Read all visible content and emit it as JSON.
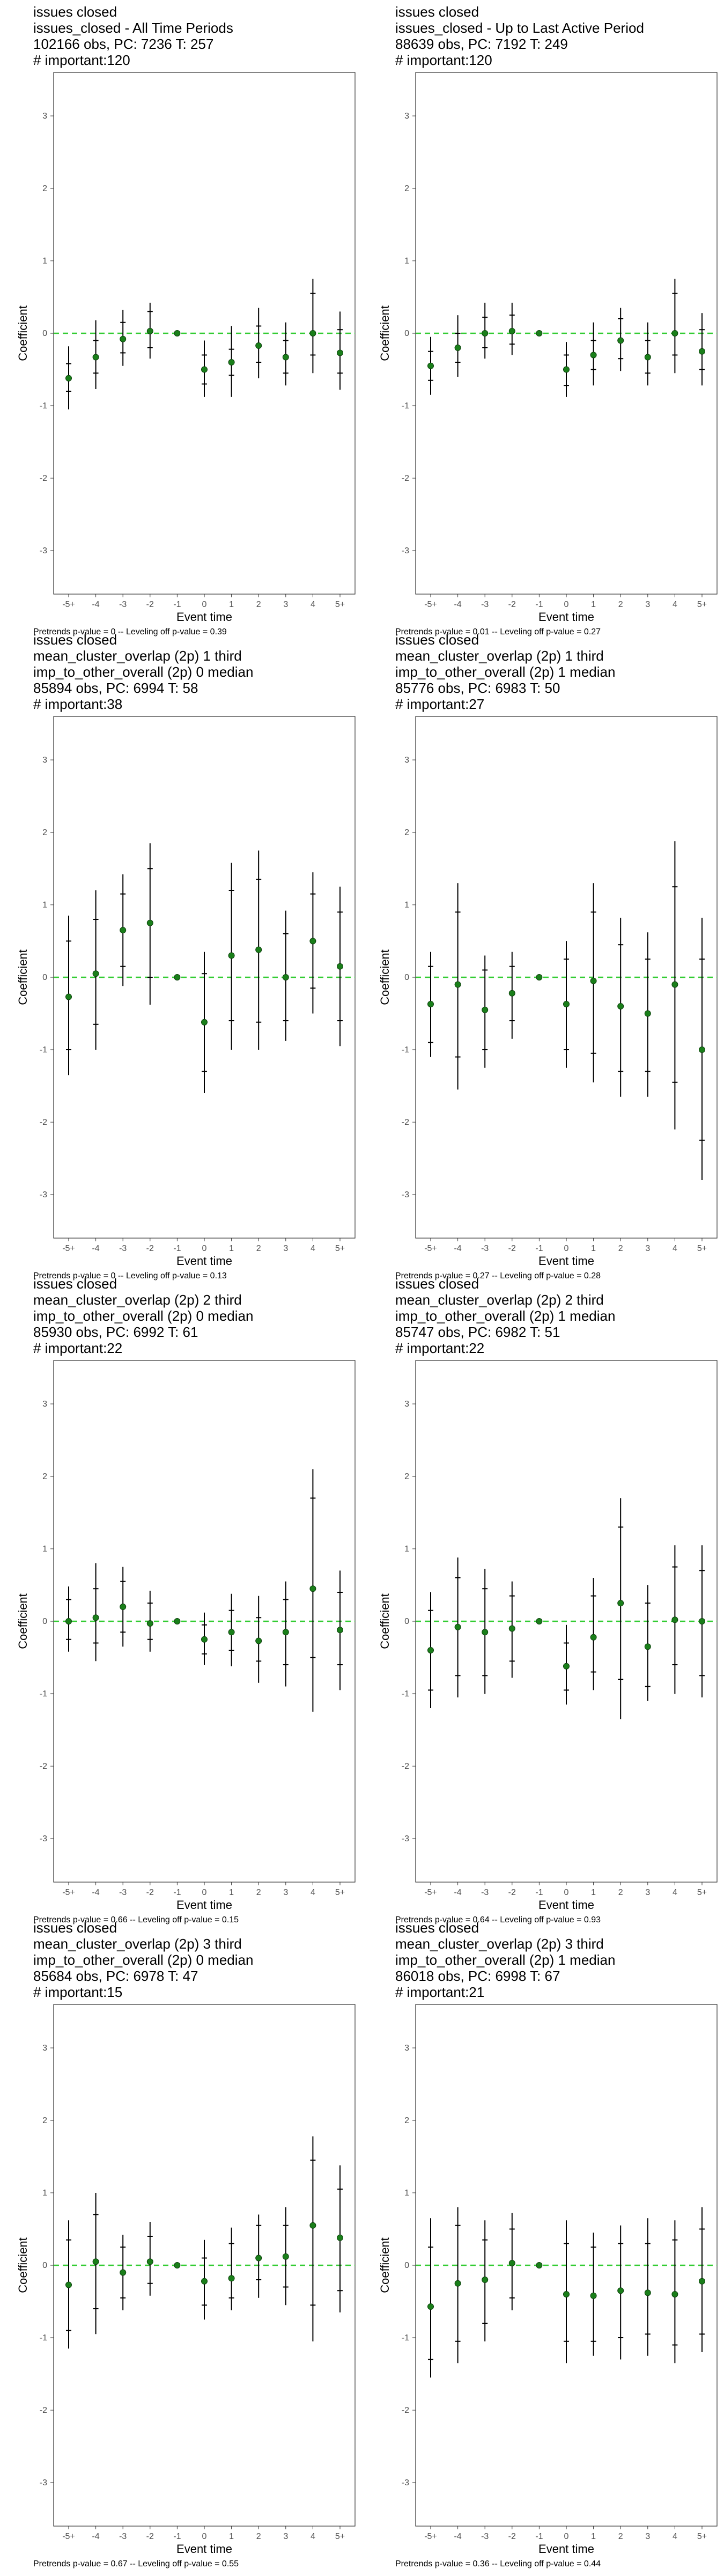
{
  "axis": {
    "ylabel": "Coefficient",
    "xlabel": "Event time",
    "xticks": [
      "-5+",
      "-4",
      "-3",
      "-2",
      "-1",
      "0",
      "1",
      "2",
      "3",
      "4",
      "5+"
    ],
    "yticks": [
      -3,
      -2,
      -1,
      0,
      1,
      2,
      3
    ],
    "ylim": [
      -3.6,
      3.6
    ]
  },
  "colors": {
    "point": "#1a7f1a",
    "zero_line": "#33cc33",
    "bar": "#000000"
  },
  "chart_data": [
    {
      "type": "scatter",
      "title_lines": [
        "issues closed",
        "issues_closed - All Time Periods",
        "102166 obs, PC: 7236 T: 257",
        "# important:120"
      ],
      "footnote": "Pretrends p-value = 0 -- Leveling off p-value = 0.39",
      "x": [
        "-5+",
        "-4",
        "-3",
        "-2",
        "-1",
        "0",
        "1",
        "2",
        "3",
        "4",
        "5+"
      ],
      "y": [
        -0.62,
        -0.33,
        -0.08,
        0.03,
        0,
        -0.5,
        -0.4,
        -0.17,
        -0.33,
        0.0,
        -0.27
      ],
      "ci_inner": [
        [
          -0.8,
          -0.42
        ],
        [
          -0.55,
          -0.1
        ],
        [
          -0.27,
          0.15
        ],
        [
          -0.2,
          0.3
        ],
        [
          0,
          0
        ],
        [
          -0.7,
          -0.3
        ],
        [
          -0.58,
          -0.22
        ],
        [
          -0.4,
          0.1
        ],
        [
          -0.55,
          -0.1
        ],
        [
          -0.3,
          0.55
        ],
        [
          -0.55,
          0.05
        ]
      ],
      "ci_outer": [
        [
          -1.05,
          -0.18
        ],
        [
          -0.77,
          0.18
        ],
        [
          -0.45,
          0.32
        ],
        [
          -0.35,
          0.42
        ],
        [
          0,
          0
        ],
        [
          -0.88,
          -0.1
        ],
        [
          -0.88,
          0.1
        ],
        [
          -0.62,
          0.35
        ],
        [
          -0.72,
          0.15
        ],
        [
          -0.55,
          0.75
        ],
        [
          -0.78,
          0.3
        ]
      ]
    },
    {
      "type": "scatter",
      "title_lines": [
        "issues closed",
        "issues_closed - Up to Last Active Period",
        "88639 obs, PC: 7192 T: 249",
        "# important:120"
      ],
      "footnote": "Pretrends p-value = 0.01 -- Leveling off p-value = 0.27",
      "x": [
        "-5+",
        "-4",
        "-3",
        "-2",
        "-1",
        "0",
        "1",
        "2",
        "3",
        "4",
        "5+"
      ],
      "y": [
        -0.45,
        -0.2,
        0.0,
        0.03,
        0,
        -0.5,
        -0.3,
        -0.1,
        -0.33,
        0.0,
        -0.25
      ],
      "ci_inner": [
        [
          -0.65,
          -0.25
        ],
        [
          -0.4,
          0.0
        ],
        [
          -0.2,
          0.22
        ],
        [
          -0.15,
          0.25
        ],
        [
          0,
          0
        ],
        [
          -0.72,
          -0.3
        ],
        [
          -0.5,
          -0.1
        ],
        [
          -0.35,
          0.2
        ],
        [
          -0.55,
          -0.1
        ],
        [
          -0.3,
          0.55
        ],
        [
          -0.5,
          0.05
        ]
      ],
      "ci_outer": [
        [
          -0.85,
          -0.05
        ],
        [
          -0.6,
          0.25
        ],
        [
          -0.35,
          0.42
        ],
        [
          -0.3,
          0.42
        ],
        [
          0,
          0
        ],
        [
          -0.88,
          -0.12
        ],
        [
          -0.72,
          0.15
        ],
        [
          -0.52,
          0.35
        ],
        [
          -0.72,
          0.15
        ],
        [
          -0.55,
          0.75
        ],
        [
          -0.72,
          0.28
        ]
      ]
    },
    {
      "type": "scatter",
      "title_lines": [
        "issues closed",
        "mean_cluster_overlap (2p) 1 third",
        "imp_to_other_overall (2p) 0 median",
        "85894 obs, PC: 6994 T: 58",
        "# important:38"
      ],
      "footnote": "Pretrends p-value = 0 -- Leveling off p-value = 0.13",
      "x": [
        "-5+",
        "-4",
        "-3",
        "-2",
        "-1",
        "0",
        "1",
        "2",
        "3",
        "4",
        "5+"
      ],
      "y": [
        -0.27,
        0.05,
        0.65,
        0.75,
        0,
        -0.62,
        0.3,
        0.38,
        0.0,
        0.5,
        0.15
      ],
      "ci_inner": [
        [
          -1.0,
          0.5
        ],
        [
          -0.65,
          0.8
        ],
        [
          0.15,
          1.15
        ],
        [
          0.0,
          1.5
        ],
        [
          0,
          0
        ],
        [
          -1.3,
          0.05
        ],
        [
          -0.6,
          1.2
        ],
        [
          -0.62,
          1.35
        ],
        [
          -0.6,
          0.6
        ],
        [
          -0.15,
          1.15
        ],
        [
          -0.6,
          0.9
        ]
      ],
      "ci_outer": [
        [
          -1.35,
          0.85
        ],
        [
          -1.0,
          1.2
        ],
        [
          -0.12,
          1.42
        ],
        [
          -0.38,
          1.85
        ],
        [
          0,
          0
        ],
        [
          -1.6,
          0.35
        ],
        [
          -1.0,
          1.58
        ],
        [
          -1.0,
          1.75
        ],
        [
          -0.88,
          0.92
        ],
        [
          -0.5,
          1.45
        ],
        [
          -0.95,
          1.25
        ]
      ]
    },
    {
      "type": "scatter",
      "title_lines": [
        "issues closed",
        "mean_cluster_overlap (2p) 1 third",
        "imp_to_other_overall (2p) 1 median",
        "85776 obs, PC: 6983 T: 50",
        "# important:27"
      ],
      "footnote": "Pretrends p-value = 0.27 -- Leveling off p-value = 0.28",
      "x": [
        "-5+",
        "-4",
        "-3",
        "-2",
        "-1",
        "0",
        "1",
        "2",
        "3",
        "4",
        "5+"
      ],
      "y": [
        -0.37,
        -0.1,
        -0.45,
        -0.22,
        0,
        -0.37,
        -0.05,
        -0.4,
        -0.5,
        -0.1,
        -1.0
      ],
      "ci_inner": [
        [
          -0.9,
          0.15
        ],
        [
          -1.1,
          0.9
        ],
        [
          -1.0,
          0.1
        ],
        [
          -0.6,
          0.15
        ],
        [
          0,
          0
        ],
        [
          -1.0,
          0.25
        ],
        [
          -1.05,
          0.9
        ],
        [
          -1.3,
          0.45
        ],
        [
          -1.3,
          0.25
        ],
        [
          -1.45,
          1.25
        ],
        [
          -2.25,
          0.25
        ]
      ],
      "ci_outer": [
        [
          -1.1,
          0.35
        ],
        [
          -1.55,
          1.3
        ],
        [
          -1.25,
          0.3
        ],
        [
          -0.85,
          0.35
        ],
        [
          0,
          0
        ],
        [
          -1.25,
          0.5
        ],
        [
          -1.45,
          1.3
        ],
        [
          -1.65,
          0.82
        ],
        [
          -1.65,
          0.62
        ],
        [
          -2.1,
          1.88
        ],
        [
          -2.8,
          0.82
        ]
      ]
    },
    {
      "type": "scatter",
      "title_lines": [
        "issues closed",
        "mean_cluster_overlap (2p) 2 third",
        "imp_to_other_overall (2p) 0 median",
        "85930 obs, PC: 6992 T: 61",
        "# important:22"
      ],
      "footnote": "Pretrends p-value = 0.66 -- Leveling off p-value = 0.15",
      "x": [
        "-5+",
        "-4",
        "-3",
        "-2",
        "-1",
        "0",
        "1",
        "2",
        "3",
        "4",
        "5+"
      ],
      "y": [
        0.0,
        0.05,
        0.2,
        -0.03,
        0,
        -0.25,
        -0.15,
        -0.27,
        -0.15,
        0.45,
        -0.12
      ],
      "ci_inner": [
        [
          -0.25,
          0.3
        ],
        [
          -0.3,
          0.45
        ],
        [
          -0.15,
          0.55
        ],
        [
          -0.25,
          0.25
        ],
        [
          0,
          0
        ],
        [
          -0.45,
          -0.05
        ],
        [
          -0.4,
          0.15
        ],
        [
          -0.55,
          0.05
        ],
        [
          -0.6,
          0.3
        ],
        [
          -0.5,
          1.7
        ],
        [
          -0.6,
          0.4
        ]
      ],
      "ci_outer": [
        [
          -0.42,
          0.48
        ],
        [
          -0.55,
          0.8
        ],
        [
          -0.35,
          0.75
        ],
        [
          -0.42,
          0.42
        ],
        [
          0,
          0
        ],
        [
          -0.6,
          0.12
        ],
        [
          -0.62,
          0.38
        ],
        [
          -0.85,
          0.35
        ],
        [
          -0.9,
          0.55
        ],
        [
          -1.25,
          2.1
        ],
        [
          -0.95,
          0.7
        ]
      ]
    },
    {
      "type": "scatter",
      "title_lines": [
        "issues closed",
        "mean_cluster_overlap (2p) 2 third",
        "imp_to_other_overall (2p) 1 median",
        "85747 obs, PC: 6982 T: 51",
        "# important:22"
      ],
      "footnote": "Pretrends p-value = 0.64 -- Leveling off p-value = 0.93",
      "x": [
        "-5+",
        "-4",
        "-3",
        "-2",
        "-1",
        "0",
        "1",
        "2",
        "3",
        "4",
        "5+"
      ],
      "y": [
        -0.4,
        -0.08,
        -0.15,
        -0.1,
        0,
        -0.62,
        -0.22,
        0.25,
        -0.35,
        0.02,
        0.0
      ],
      "ci_inner": [
        [
          -0.95,
          0.15
        ],
        [
          -0.75,
          0.6
        ],
        [
          -0.75,
          0.45
        ],
        [
          -0.55,
          0.35
        ],
        [
          0,
          0
        ],
        [
          -0.95,
          -0.3
        ],
        [
          -0.7,
          0.35
        ],
        [
          -0.8,
          1.3
        ],
        [
          -0.9,
          0.25
        ],
        [
          -0.6,
          0.75
        ],
        [
          -0.75,
          0.7
        ]
      ],
      "ci_outer": [
        [
          -1.2,
          0.4
        ],
        [
          -1.05,
          0.88
        ],
        [
          -1.0,
          0.72
        ],
        [
          -0.78,
          0.55
        ],
        [
          0,
          0
        ],
        [
          -1.15,
          -0.05
        ],
        [
          -0.95,
          0.6
        ],
        [
          -1.35,
          1.7
        ],
        [
          -1.1,
          0.5
        ],
        [
          -1.0,
          1.05
        ],
        [
          -1.05,
          1.05
        ]
      ]
    },
    {
      "type": "scatter",
      "title_lines": [
        "issues closed",
        "mean_cluster_overlap (2p) 3 third",
        "imp_to_other_overall (2p) 0 median",
        "85684 obs, PC: 6978 T: 47",
        "# important:15"
      ],
      "footnote": "Pretrends p-value = 0.67 -- Leveling off p-value = 0.55",
      "x": [
        "-5+",
        "-4",
        "-3",
        "-2",
        "-1",
        "0",
        "1",
        "2",
        "3",
        "4",
        "5+"
      ],
      "y": [
        -0.27,
        0.05,
        -0.1,
        0.05,
        0,
        -0.22,
        -0.18,
        0.1,
        0.12,
        0.55,
        0.38
      ],
      "ci_inner": [
        [
          -0.9,
          0.35
        ],
        [
          -0.6,
          0.7
        ],
        [
          -0.45,
          0.25
        ],
        [
          -0.25,
          0.4
        ],
        [
          0,
          0
        ],
        [
          -0.55,
          0.1
        ],
        [
          -0.45,
          0.3
        ],
        [
          -0.2,
          0.55
        ],
        [
          -0.3,
          0.55
        ],
        [
          -0.55,
          1.45
        ],
        [
          -0.35,
          1.05
        ]
      ],
      "ci_outer": [
        [
          -1.15,
          0.62
        ],
        [
          -0.95,
          1.0
        ],
        [
          -0.62,
          0.42
        ],
        [
          -0.42,
          0.6
        ],
        [
          0,
          0
        ],
        [
          -0.75,
          0.35
        ],
        [
          -0.62,
          0.52
        ],
        [
          -0.45,
          0.7
        ],
        [
          -0.55,
          0.8
        ],
        [
          -1.05,
          1.78
        ],
        [
          -0.65,
          1.38
        ]
      ]
    },
    {
      "type": "scatter",
      "title_lines": [
        "issues closed",
        "mean_cluster_overlap (2p) 3 third",
        "imp_to_other_overall (2p) 1 median",
        "86018 obs, PC: 6998 T: 67",
        "# important:21"
      ],
      "footnote": "Pretrends p-value = 0.36 -- Leveling off p-value = 0.44",
      "x": [
        "-5+",
        "-4",
        "-3",
        "-2",
        "-1",
        "0",
        "1",
        "2",
        "3",
        "4",
        "5+"
      ],
      "y": [
        -0.57,
        -0.25,
        -0.2,
        0.03,
        0,
        -0.4,
        -0.42,
        -0.35,
        -0.38,
        -0.4,
        -0.22
      ],
      "ci_inner": [
        [
          -1.3,
          0.25
        ],
        [
          -1.05,
          0.55
        ],
        [
          -0.8,
          0.35
        ],
        [
          -0.45,
          0.5
        ],
        [
          0,
          0
        ],
        [
          -1.05,
          0.3
        ],
        [
          -1.05,
          0.25
        ],
        [
          -1.0,
          0.3
        ],
        [
          -0.95,
          0.3
        ],
        [
          -1.1,
          0.35
        ],
        [
          -0.95,
          0.5
        ]
      ],
      "ci_outer": [
        [
          -1.55,
          0.65
        ],
        [
          -1.35,
          0.8
        ],
        [
          -1.05,
          0.62
        ],
        [
          -0.62,
          0.72
        ],
        [
          0,
          0
        ],
        [
          -1.35,
          0.62
        ],
        [
          -1.25,
          0.45
        ],
        [
          -1.3,
          0.55
        ],
        [
          -1.25,
          0.65
        ],
        [
          -1.35,
          0.62
        ],
        [
          -1.2,
          0.8
        ]
      ]
    }
  ]
}
